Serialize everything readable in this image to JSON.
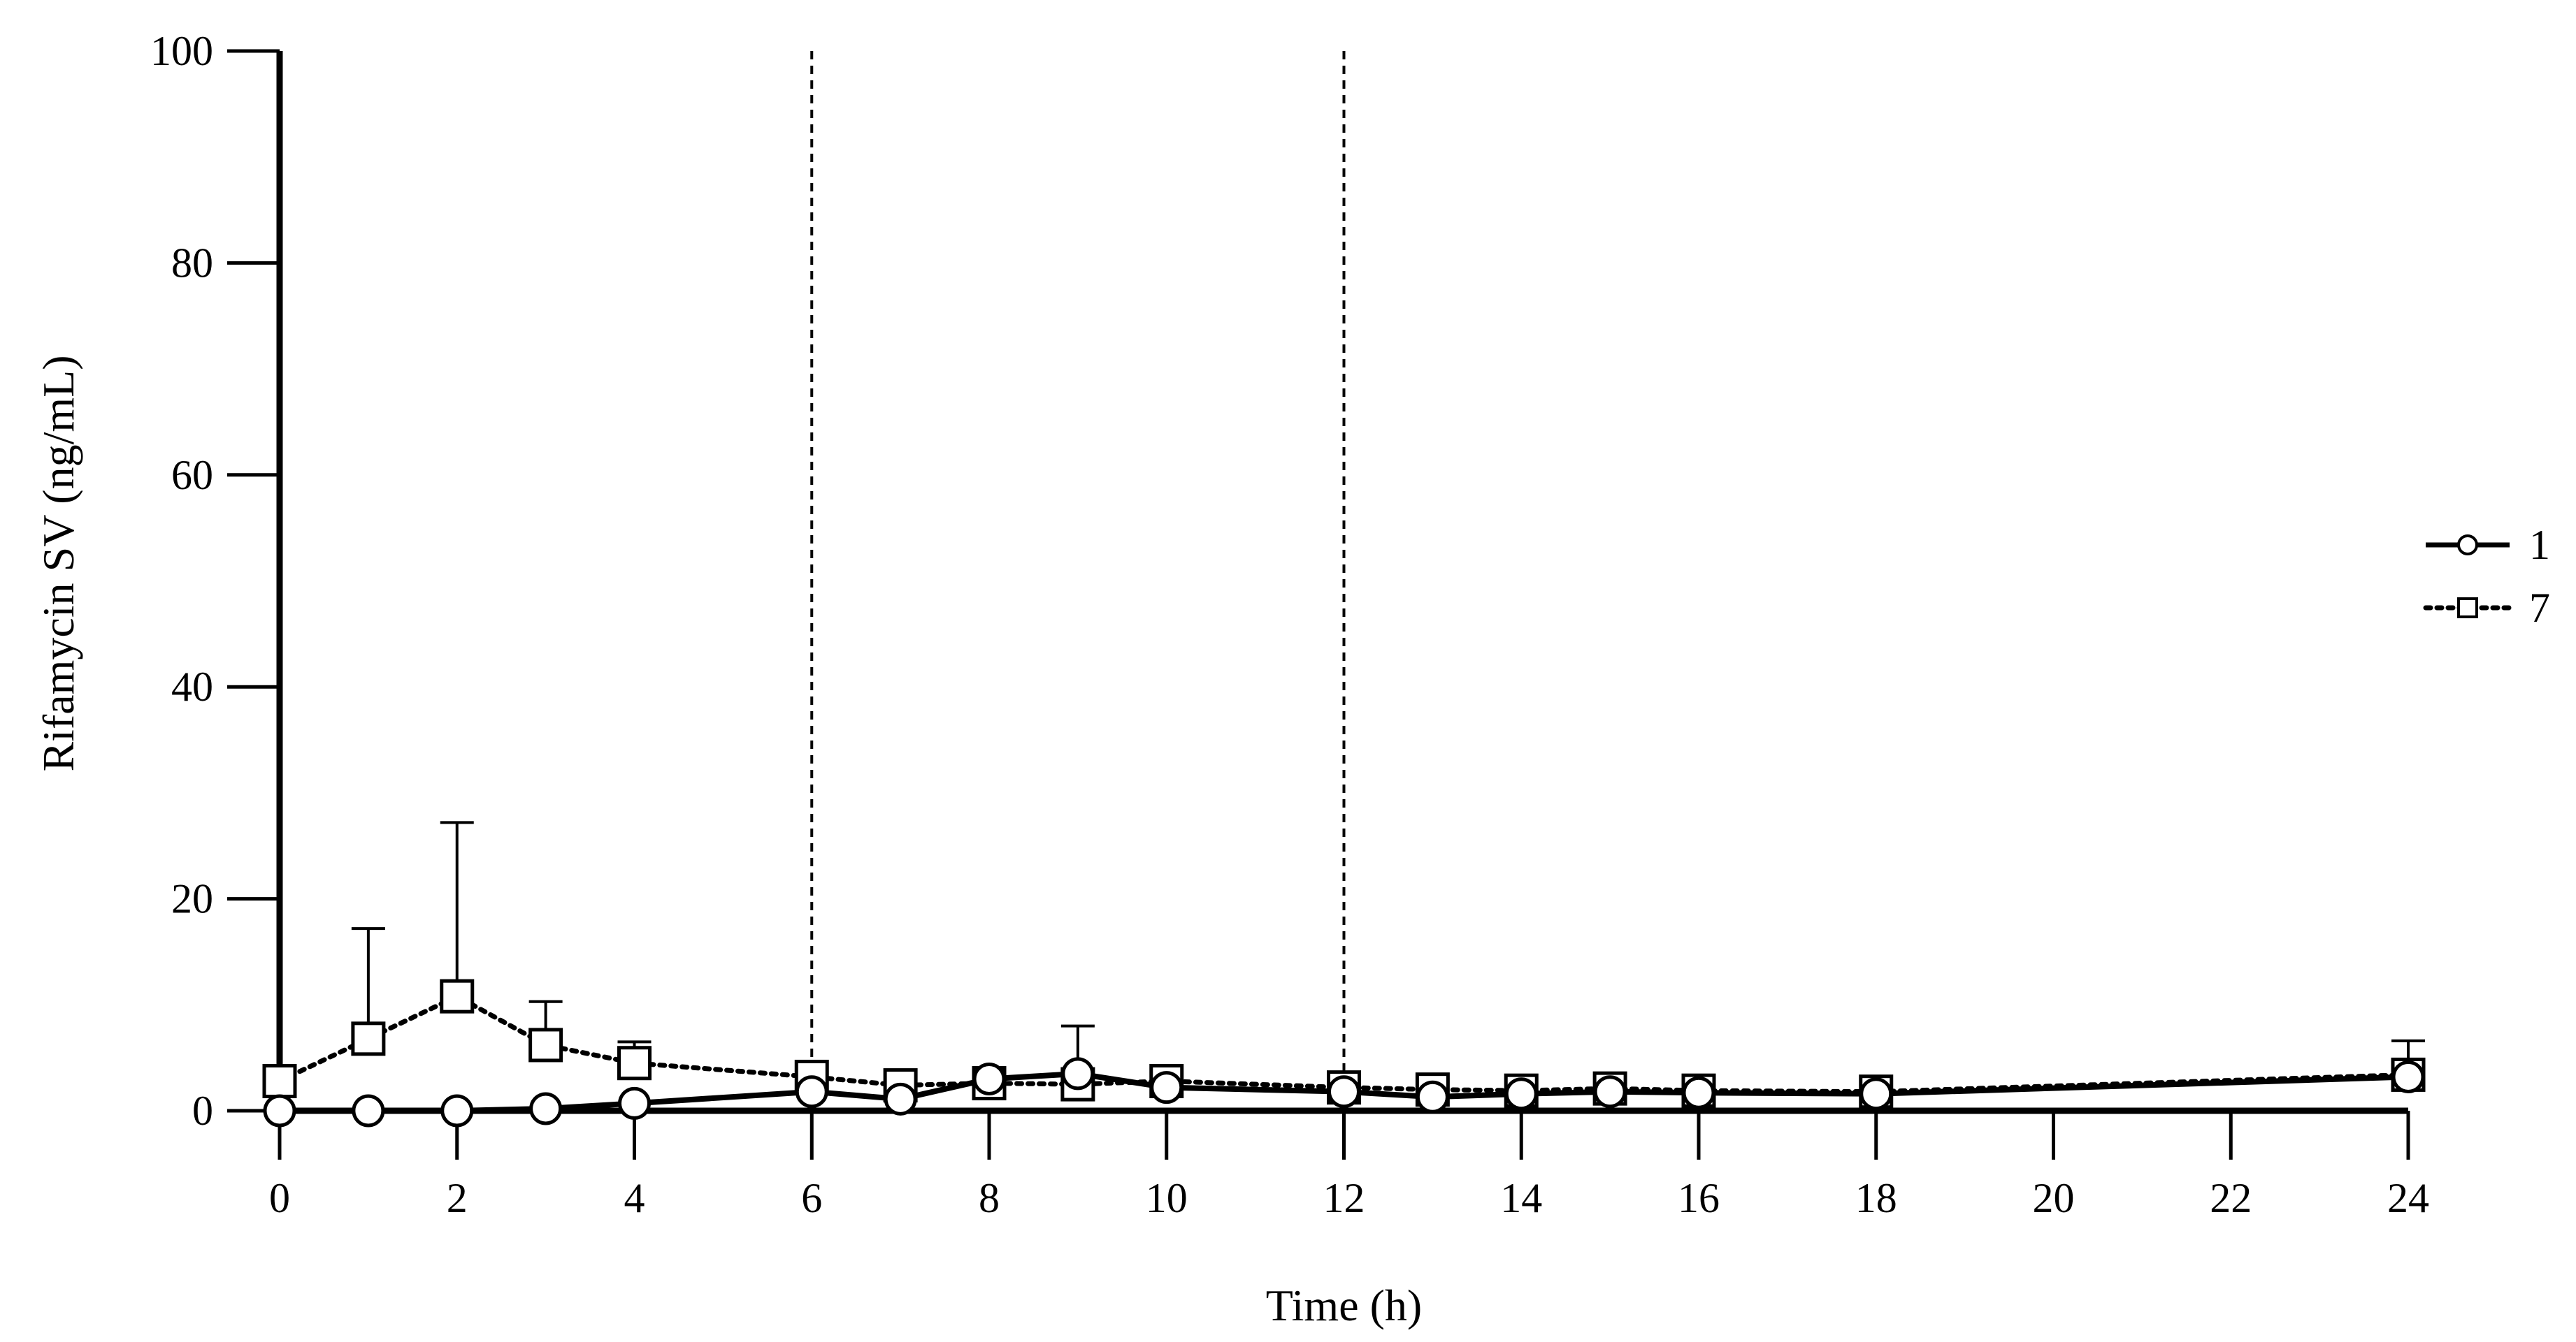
{
  "chart_data": {
    "type": "line",
    "title": "",
    "xlabel": "Time (h)",
    "ylabel": "Rifamycin SV (ng/mL)",
    "xlim": [
      0,
      24
    ],
    "ylim": [
      0,
      100
    ],
    "x_ticks": [
      "0",
      "2",
      "4",
      "6",
      "8",
      "10",
      "12",
      "14",
      "16",
      "18",
      "20",
      "22",
      "24"
    ],
    "y_ticks": [
      "0",
      "20",
      "40",
      "60",
      "80",
      "100"
    ],
    "reference_lines_x": [
      6,
      12
    ],
    "grid": false,
    "legend_position": "right",
    "series": [
      {
        "name": "1",
        "line_style": "solid",
        "marker": "circle",
        "x": [
          0,
          1,
          2,
          3,
          4,
          6,
          7,
          8,
          9,
          10,
          12,
          13,
          14,
          15,
          16,
          18,
          24
        ],
        "y": [
          0,
          0,
          0,
          0.2,
          0.7,
          1.8,
          1.1,
          3.0,
          3.5,
          2.2,
          1.8,
          1.3,
          1.6,
          1.8,
          1.7,
          1.6,
          3.2
        ],
        "error_upper": [
          0,
          0,
          0,
          0,
          0,
          0,
          0,
          0,
          8.0,
          0,
          0,
          0,
          0,
          0,
          0,
          0,
          0
        ]
      },
      {
        "name": "7",
        "line_style": "dotted",
        "marker": "square",
        "x": [
          0,
          1,
          2,
          3,
          4,
          6,
          7,
          8,
          9,
          10,
          12,
          13,
          14,
          15,
          16,
          18,
          24
        ],
        "y": [
          2.8,
          6.8,
          10.8,
          6.2,
          4.5,
          3.2,
          2.4,
          2.6,
          2.5,
          2.8,
          2.2,
          2.0,
          1.9,
          2.1,
          1.9,
          1.8,
          3.4
        ],
        "error_upper": [
          0,
          17.2,
          27.2,
          10.3,
          6.5,
          0,
          0,
          0,
          0,
          0,
          0,
          0,
          0,
          0,
          0,
          0,
          6.6
        ]
      }
    ]
  }
}
